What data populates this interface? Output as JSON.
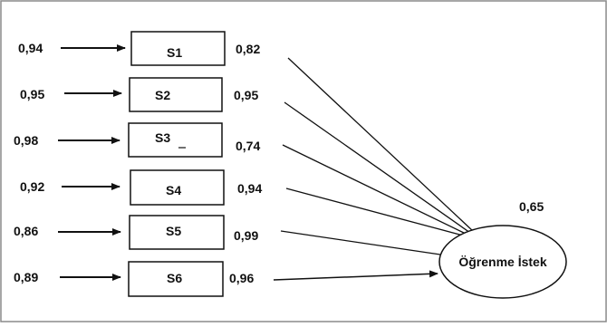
{
  "latent": {
    "label": "Öğrenme İstek",
    "variance": "0,65"
  },
  "items": [
    {
      "label": "S1",
      "error": "0,94",
      "loading": "0,82"
    },
    {
      "label": "S2",
      "error": "0,95",
      "loading": "0,95"
    },
    {
      "label": "S3",
      "error": "0,98",
      "loading": "0,74"
    },
    {
      "label": "S4",
      "error": "0,92",
      "loading": "0,94"
    },
    {
      "label": "S5",
      "error": "0,86",
      "loading": "0,99"
    },
    {
      "label": "S6",
      "error": "0,89",
      "loading": "0,96"
    }
  ]
}
